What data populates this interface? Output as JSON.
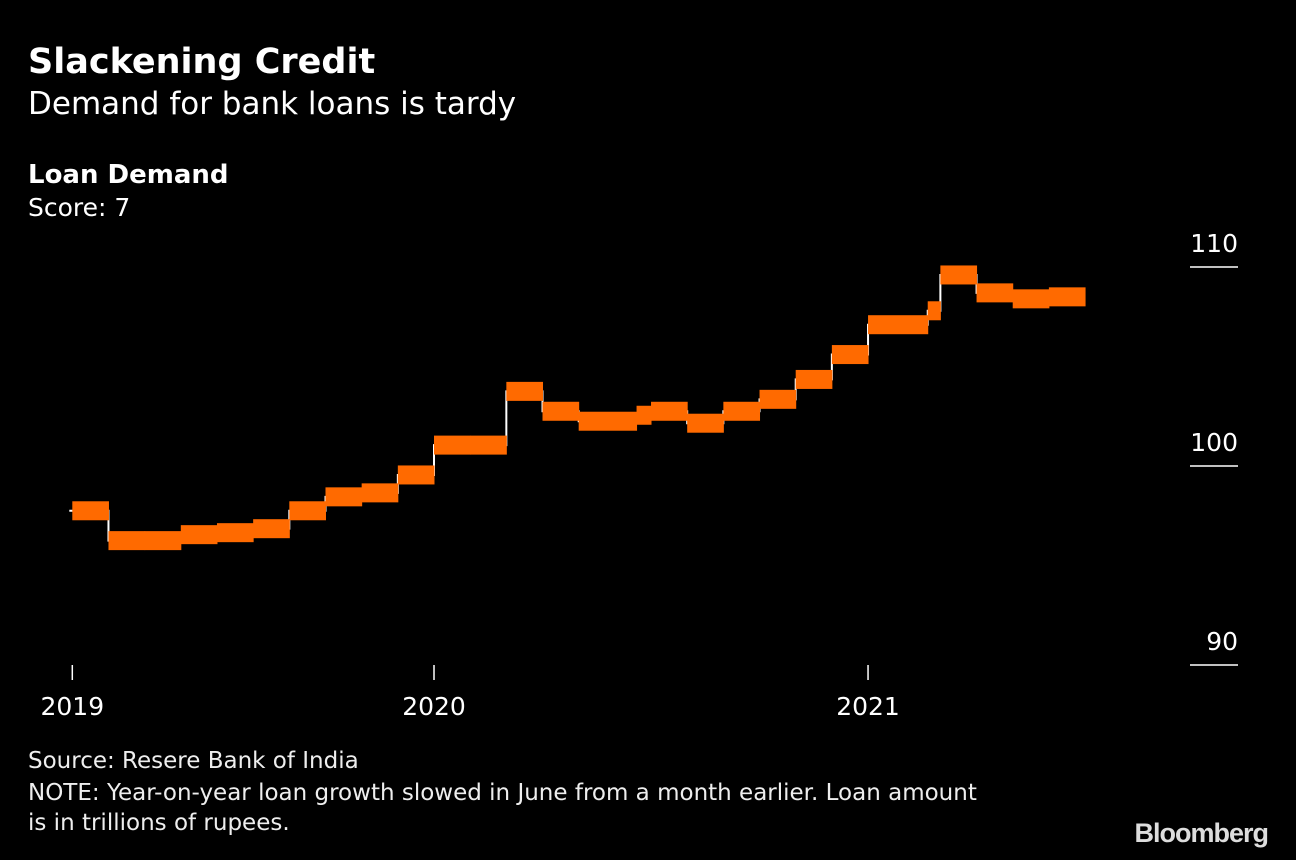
{
  "header": {
    "title": "Slackening Credit",
    "subtitle": "Demand for bank loans is tardy"
  },
  "chart_data": {
    "type": "step",
    "title": "Loan Demand",
    "unit_label": "Score: 7",
    "ylim": [
      90,
      110
    ],
    "y_ticks": [
      90,
      100,
      110
    ],
    "x_ticks": [
      {
        "label": "2019",
        "month_index": 2
      },
      {
        "label": "2020",
        "month_index": 12
      },
      {
        "label": "2021",
        "month_index": 24
      }
    ],
    "x_unit": "months since Jan 2019",
    "color": "#ff6a00",
    "connector_color": "#ffffff",
    "segments": [
      {
        "start": 2,
        "end": 3,
        "value": 97.75
      },
      {
        "start": 3,
        "end": 4,
        "value": 96.25
      },
      {
        "start": 4,
        "end": 5,
        "value": 96.25
      },
      {
        "start": 5,
        "end": 6,
        "value": 96.55
      },
      {
        "start": 6,
        "end": 7,
        "value": 96.65
      },
      {
        "start": 7,
        "end": 8,
        "value": 96.85
      },
      {
        "start": 8,
        "end": 9,
        "value": 97.75
      },
      {
        "start": 9,
        "end": 10,
        "value": 98.45
      },
      {
        "start": 10,
        "end": 11,
        "value": 98.65
      },
      {
        "start": 11,
        "end": 12,
        "value": 99.55
      },
      {
        "start": 12,
        "end": 13,
        "value": 101.05
      },
      {
        "start": 13,
        "end": 14,
        "value": 101.05
      },
      {
        "start": 14,
        "end": 15,
        "value": 103.75
      },
      {
        "start": 15,
        "end": 16,
        "value": 102.75
      },
      {
        "start": 16,
        "end": 17.6,
        "value": 102.25
      },
      {
        "start": 17.6,
        "end": 18,
        "value": 102.55
      },
      {
        "start": 18,
        "end": 19,
        "value": 102.75
      },
      {
        "start": 19,
        "end": 20,
        "value": 102.15
      },
      {
        "start": 20,
        "end": 21,
        "value": 102.75
      },
      {
        "start": 21,
        "end": 22,
        "value": 103.35
      },
      {
        "start": 22,
        "end": 23,
        "value": 104.35
      },
      {
        "start": 23,
        "end": 24,
        "value": 105.6
      },
      {
        "start": 24,
        "end": 25.65,
        "value": 107.1
      },
      {
        "start": 25.65,
        "end": 26,
        "value": 107.8
      },
      {
        "start": 26,
        "end": 27,
        "value": 109.6
      },
      {
        "start": 27,
        "end": 28,
        "value": 108.7
      },
      {
        "start": 28,
        "end": 29,
        "value": 108.4
      },
      {
        "start": 29,
        "end": 30,
        "value": 108.5
      }
    ]
  },
  "footer": {
    "source": "Source: Resere Bank of India",
    "note": "NOTE: Year-on-year loan growth slowed in June from a month earlier. Loan amount is in trillions of rupees.",
    "logo": "Bloomberg"
  }
}
